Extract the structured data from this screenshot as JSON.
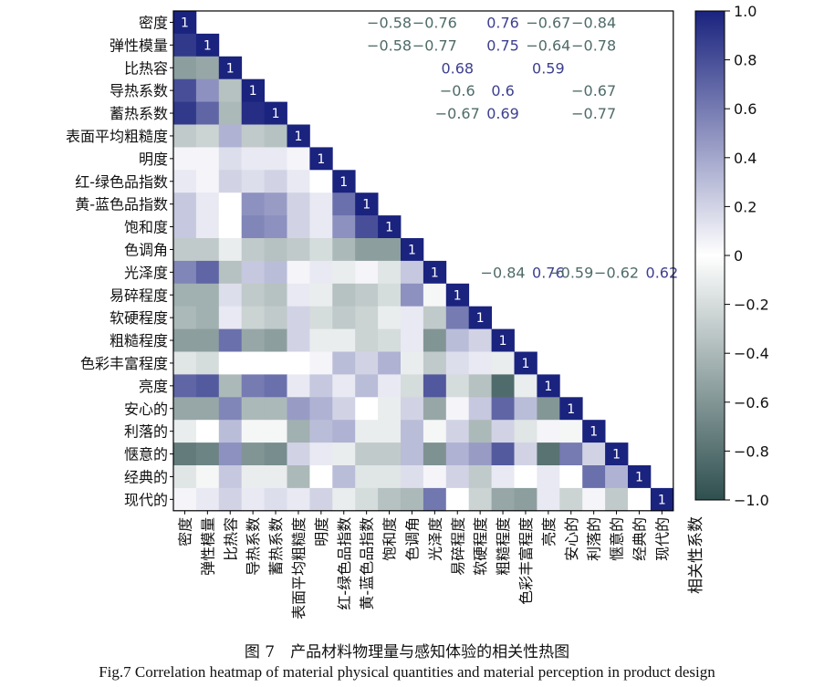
{
  "chart_data": {
    "type": "heatmap",
    "labels": [
      "密度",
      "弹性模量",
      "比热容",
      "导热系数",
      "蓄热系数",
      "表面平均粗糙度",
      "明度",
      "红-绿色品指数",
      "黄-蓝色品指数",
      "饱和度",
      "色调角",
      "光泽度",
      "易碎程度",
      "软硬程度",
      "粗糙程度",
      "色彩丰富程度",
      "亮度",
      "安心的",
      "利落的",
      "惬意的",
      "经典的",
      "现代的"
    ],
    "matrix": [
      [
        1
      ],
      [
        0.9,
        1
      ],
      [
        -0.55,
        -0.5,
        1
      ],
      [
        0.8,
        0.5,
        -0.35,
        1
      ],
      [
        0.9,
        0.7,
        -0.4,
        0.95,
        1
      ],
      [
        -0.3,
        -0.25,
        0.35,
        -0.3,
        -0.35,
        1
      ],
      [
        0.05,
        0.05,
        0.15,
        0.1,
        0.1,
        0.05,
        1
      ],
      [
        0.1,
        0.05,
        0.2,
        0.15,
        0.2,
        0.1,
        0,
        1
      ],
      [
        0.25,
        0.1,
        0,
        0.5,
        0.45,
        0.2,
        0.1,
        0.65,
        1
      ],
      [
        0.25,
        0.1,
        0,
        0.55,
        0.5,
        0.2,
        0.1,
        0.5,
        0.8,
        1
      ],
      [
        -0.3,
        -0.3,
        -0.1,
        -0.3,
        -0.35,
        -0.3,
        -0.2,
        -0.4,
        -0.55,
        -0.55,
        1
      ],
      [
        0.55,
        0.7,
        -0.35,
        0.25,
        0.3,
        0.05,
        0.1,
        -0.1,
        0.05,
        -0.15,
        0.25,
        1
      ],
      [
        -0.45,
        -0.45,
        0.15,
        -0.3,
        -0.35,
        0.1,
        -0.1,
        -0.35,
        -0.3,
        -0.2,
        0.5,
        -0.05,
        1
      ],
      [
        -0.4,
        -0.45,
        0.1,
        -0.25,
        -0.3,
        0.2,
        -0.2,
        -0.3,
        -0.25,
        -0.1,
        0.1,
        -0.3,
        0.6,
        1
      ],
      [
        -0.55,
        -0.55,
        0.65,
        -0.5,
        -0.55,
        0.2,
        -0.1,
        -0.1,
        -0.25,
        -0.2,
        0.1,
        -0.6,
        0.3,
        0.2,
        1
      ],
      [
        -0.15,
        -0.2,
        0,
        0,
        0,
        0,
        0.05,
        0.3,
        0.2,
        0.35,
        -0.1,
        -0.3,
        0.15,
        0.1,
        -0.1,
        1
      ],
      [
        0.7,
        0.75,
        -0.4,
        0.6,
        0.65,
        0.1,
        0.25,
        0.1,
        0.3,
        0.1,
        -0.2,
        0.76,
        -0.2,
        -0.35,
        -0.84,
        -0.1,
        1
      ],
      [
        -0.5,
        -0.5,
        0.55,
        -0.4,
        -0.4,
        0.45,
        0.35,
        0.2,
        0,
        -0.1,
        0.2,
        -0.5,
        0.05,
        0.25,
        0.7,
        0.3,
        -0.59,
        1
      ],
      [
        -0.1,
        0,
        0.3,
        -0.05,
        -0.05,
        -0.45,
        0.3,
        0.35,
        -0.1,
        -0.1,
        0.3,
        -0.05,
        0.2,
        -0.4,
        0.2,
        -0.15,
        0.05,
        -0.05,
        1
      ],
      [
        -0.75,
        -0.7,
        0.5,
        -0.6,
        -0.65,
        0.2,
        0.1,
        -0.1,
        -0.3,
        -0.3,
        0.3,
        -0.62,
        0.35,
        0.45,
        0.75,
        0.2,
        -0.8,
        0.6,
        0.2,
        1
      ],
      [
        -0.15,
        -0.05,
        0.25,
        -0.1,
        -0.1,
        -0.4,
        0,
        0.3,
        -0.15,
        -0.15,
        0.15,
        0.05,
        0.2,
        -0.3,
        0.1,
        0,
        0.1,
        0,
        0.65,
        0.35,
        1
      ],
      [
        0.05,
        0.1,
        0.2,
        0.1,
        0.15,
        0.1,
        0.2,
        -0.1,
        -0.2,
        -0.35,
        -0.4,
        0.62,
        0,
        -0.25,
        -0.5,
        -0.55,
        0.1,
        -0.25,
        0.05,
        -0.3,
        0,
        1
      ]
    ],
    "annotations": [
      {
        "row": 0,
        "col": 9,
        "text": "−0.58"
      },
      {
        "row": 0,
        "col": 11,
        "text": "−0.76"
      },
      {
        "row": 0,
        "col": 14,
        "text": "0.76"
      },
      {
        "row": 0,
        "col": 16,
        "text": "−0.67"
      },
      {
        "row": 0,
        "col": 18,
        "text": "−0.84"
      },
      {
        "row": 1,
        "col": 9,
        "text": "−0.58"
      },
      {
        "row": 1,
        "col": 11,
        "text": "−0.77"
      },
      {
        "row": 1,
        "col": 14,
        "text": "0.75"
      },
      {
        "row": 1,
        "col": 16,
        "text": "−0.64"
      },
      {
        "row": 1,
        "col": 18,
        "text": "−0.78"
      },
      {
        "row": 2,
        "col": 12,
        "text": "0.68"
      },
      {
        "row": 2,
        "col": 16,
        "text": "0.59"
      },
      {
        "row": 3,
        "col": 12,
        "text": "−0.6"
      },
      {
        "row": 3,
        "col": 14,
        "text": "0.6"
      },
      {
        "row": 3,
        "col": 18,
        "text": "−0.67"
      },
      {
        "row": 4,
        "col": 12,
        "text": "−0.67"
      },
      {
        "row": 4,
        "col": 14,
        "text": "0.69"
      },
      {
        "row": 4,
        "col": 18,
        "text": "−0.77"
      },
      {
        "row": 11,
        "col": 14,
        "text": "−0.84"
      },
      {
        "row": 11,
        "col": 16,
        "text": "0.76"
      },
      {
        "row": 11,
        "col": 17,
        "text": "−0.59"
      },
      {
        "row": 11,
        "col": 19,
        "text": "−0.62"
      },
      {
        "row": 11,
        "col": 21,
        "text": "0.62"
      }
    ],
    "colorbar": {
      "label": "相关性系数",
      "range": [
        -1,
        1
      ],
      "ticks": [
        "1.0",
        "0.8",
        "0.6",
        "0.4",
        "0.2",
        "0",
        "−0.2",
        "−0.4",
        "−0.6",
        "−0.8",
        "−1.0"
      ]
    },
    "colors": {
      "high": "#1a237e",
      "mid": "#ffffff",
      "low": "#2f4f4f",
      "annot_pos": "#3d3f8f",
      "annot_neg": "#4f6b69"
    }
  },
  "caption_cn": "图 7　产品材料物理量与感知体验的相关性热图",
  "caption_en": "Fig.7 Correlation heatmap of material physical quantities and material perception in product design"
}
